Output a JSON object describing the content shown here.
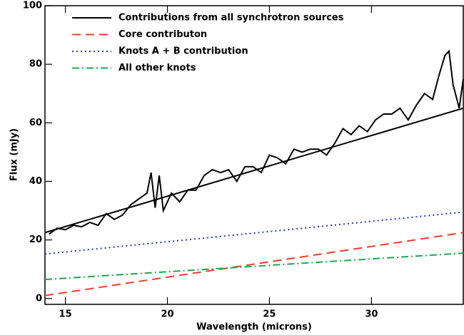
{
  "chart_data": {
    "type": "line",
    "x_label": "Wavelength (microns)",
    "y_label": "Flux (mJy)",
    "xlim": [
      14,
      34.5
    ],
    "ylim": [
      -2,
      100
    ],
    "xticks": [
      15,
      20,
      25,
      30
    ],
    "yticks": [
      0,
      20,
      40,
      60,
      80,
      100
    ],
    "legend": "upper left",
    "series": [
      {
        "color": "#000000",
        "dash": "solid",
        "x": [
          14.2,
          14.6,
          15.0,
          15.4,
          15.8,
          16.2,
          16.6,
          17.0,
          17.4,
          17.8,
          18.2,
          18.6,
          19.0,
          19.2,
          19.4,
          19.6,
          19.8,
          20.2,
          20.6,
          21.0,
          21.4,
          21.8,
          22.2,
          22.6,
          23.0,
          23.4,
          23.8,
          24.2,
          24.6,
          25.0,
          25.4,
          25.8,
          26.2,
          26.6,
          27.0,
          27.4,
          27.8,
          28.2,
          28.6,
          29.0,
          29.4,
          29.8,
          30.2,
          30.6,
          31.0,
          31.4,
          31.8,
          32.2,
          32.6,
          33.0,
          33.3,
          33.6,
          33.8,
          34.0,
          34.3,
          34.5
        ],
        "values": [
          22,
          24,
          23.5,
          25,
          24.5,
          26,
          25,
          29,
          27,
          28.5,
          32,
          34,
          36,
          43,
          31,
          42,
          30,
          36,
          33,
          37,
          37,
          42,
          44,
          43,
          44,
          40,
          45,
          45,
          43,
          49,
          48,
          46,
          51,
          50,
          51,
          51,
          49,
          53,
          58,
          56,
          59,
          57,
          61,
          63,
          63,
          65,
          61,
          66,
          70,
          68,
          76,
          83,
          84.5,
          73,
          65,
          75
        ]
      },
      {
        "name": "Contributions from all synchrotron sources",
        "color": "#000000",
        "dash": "solid",
        "x": [
          14,
          34.5
        ],
        "values": [
          22.5,
          65
        ]
      },
      {
        "name": "Core contributon",
        "color": "#e8402a",
        "dash": "dashed",
        "x": [
          14,
          34.5
        ],
        "values": [
          1,
          22.5
        ]
      },
      {
        "name": "Knots A + B contribution",
        "color": "#2a3db8",
        "dash": "dotted",
        "x": [
          14,
          34.5
        ],
        "values": [
          15.2,
          29.5
        ]
      },
      {
        "name": "All other knots",
        "color": "#1aab4a",
        "dash": "dashdot",
        "x": [
          14,
          34.5
        ],
        "values": [
          6.5,
          15.5
        ]
      }
    ]
  }
}
